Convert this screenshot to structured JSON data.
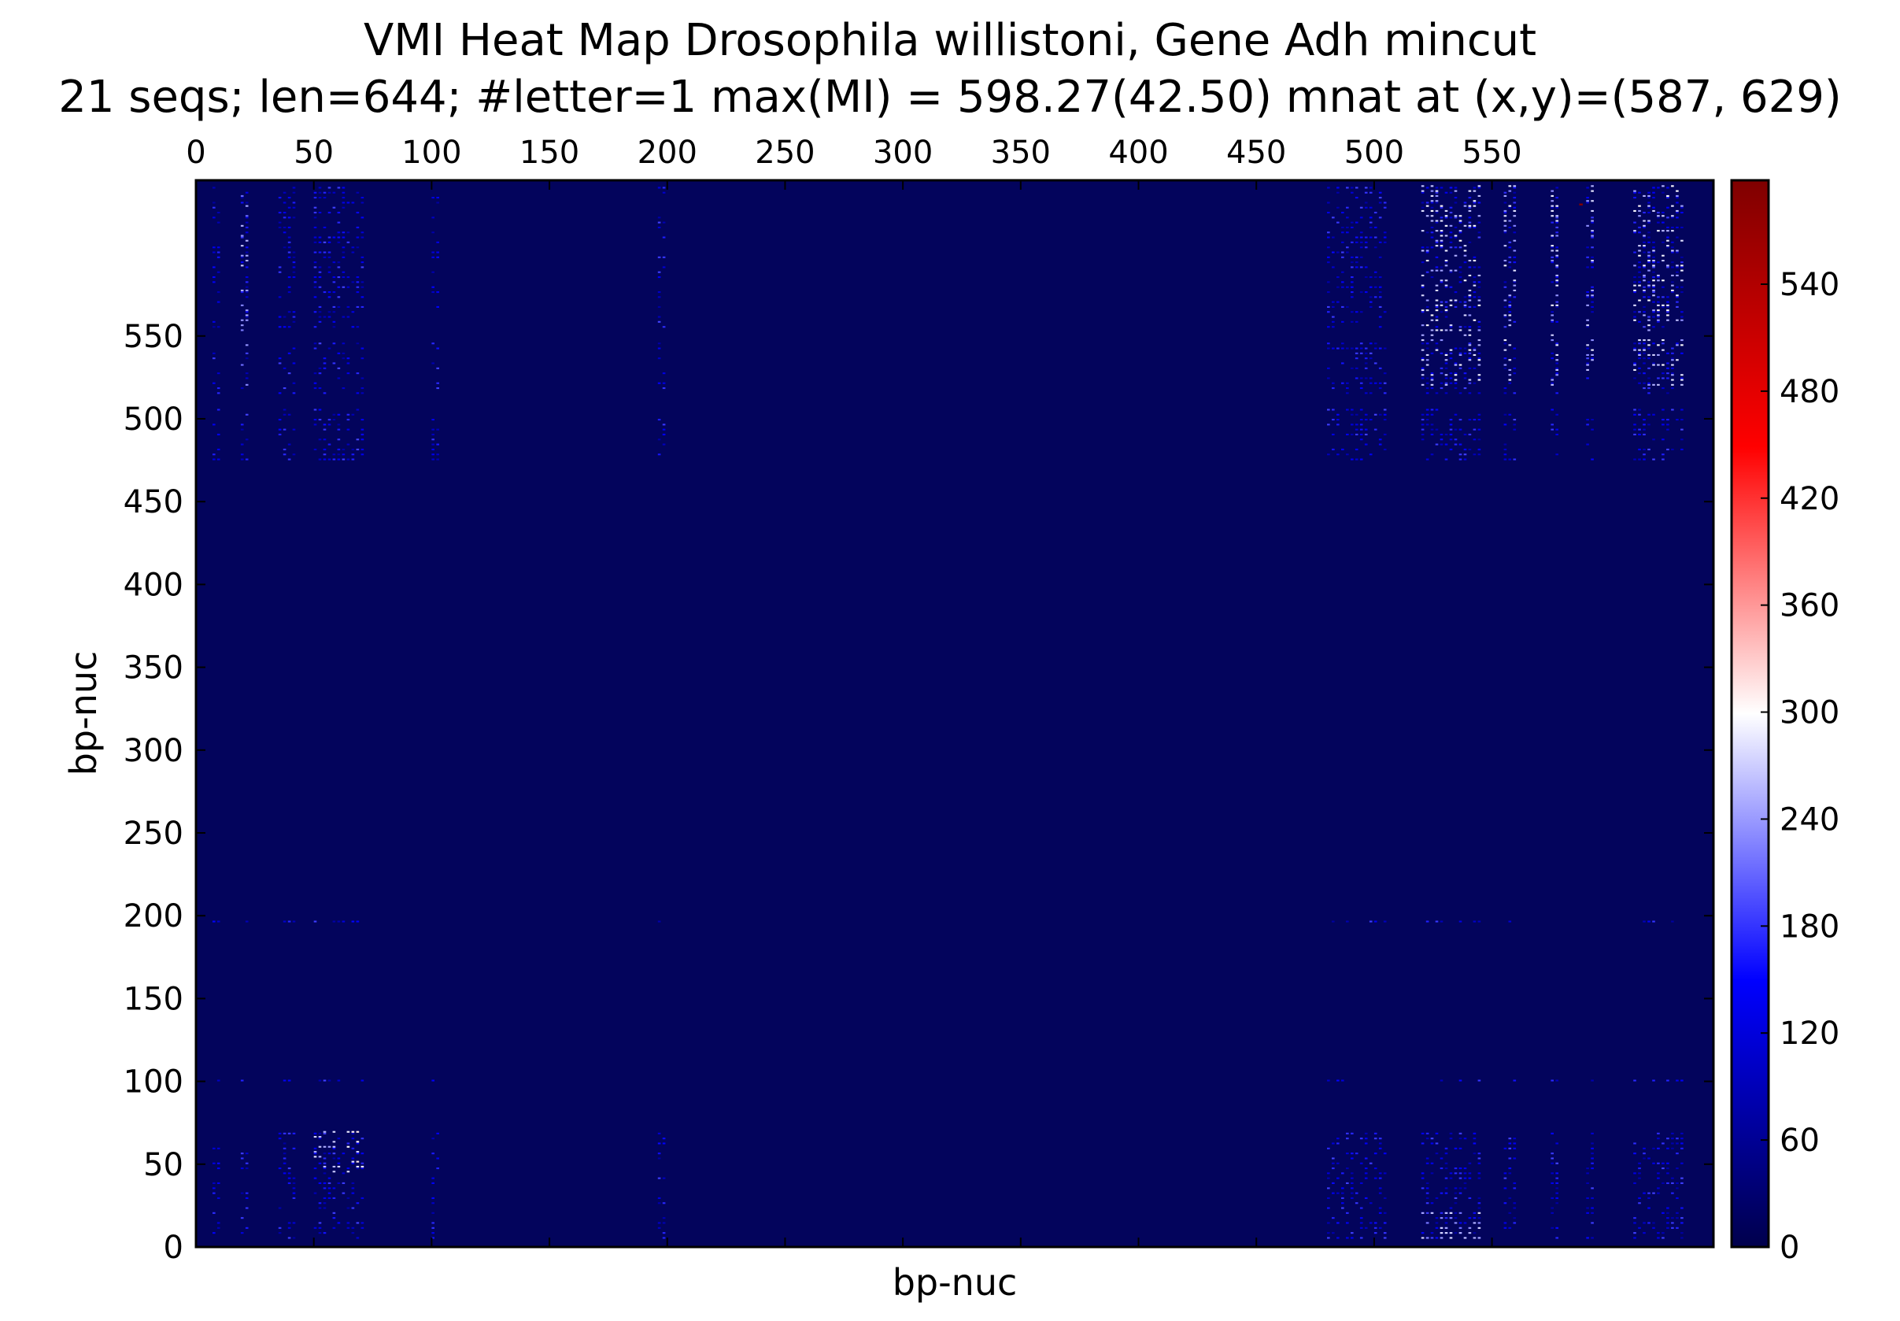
{
  "chart_data": {
    "type": "heatmap",
    "title": "VMI Heat Map Drosophila willistoni, Gene Adh mincut",
    "subtitle": "21 seqs; len=644; #letter=1 max(MI) = 598.27(42.50) mnat at (x,y)=(587, 629)",
    "xlabel": "bp-nuc",
    "ylabel": "bp-nuc",
    "x_axis_position": "top",
    "xlim": [
      0,
      644
    ],
    "ylim": [
      0,
      644
    ],
    "x_ticks": [
      0,
      50,
      100,
      150,
      200,
      250,
      300,
      350,
      400,
      450,
      500,
      550
    ],
    "y_ticks": [
      0,
      50,
      100,
      150,
      200,
      250,
      300,
      350,
      400,
      450,
      500,
      550
    ],
    "colorbar": {
      "min": 0,
      "max": 598.27,
      "ticks": [
        0,
        60,
        120,
        180,
        240,
        300,
        360,
        420,
        480,
        540
      ],
      "colormap": "seismic",
      "stops": [
        "#00004c",
        "#0000ff",
        "#ffffff",
        "#ff0000",
        "#7f0000"
      ]
    },
    "background_color": "#03045c",
    "x_clusters": [
      [
        7,
        10
      ],
      [
        19,
        22
      ],
      [
        35,
        42
      ],
      [
        50,
        70
      ],
      [
        100,
        102
      ],
      [
        196,
        198
      ],
      [
        480,
        505
      ],
      [
        520,
        545
      ],
      [
        555,
        560
      ],
      [
        575,
        578
      ],
      [
        590,
        593
      ],
      [
        610,
        630
      ]
    ],
    "y_clusters": [
      [
        5,
        70
      ],
      [
        100,
        102
      ],
      [
        196,
        198
      ],
      [
        475,
        505
      ],
      [
        515,
        545
      ],
      [
        555,
        640
      ]
    ],
    "hot_blocks": [
      {
        "x": [
          50,
          70
        ],
        "y": [
          45,
          70
        ],
        "value": 300
      },
      {
        "x": [
          520,
          545
        ],
        "y": [
          520,
          640
        ],
        "value": 290
      },
      {
        "x": [
          610,
          630
        ],
        "y": [
          520,
          640
        ],
        "value": 290
      },
      {
        "x": [
          555,
          560
        ],
        "y": [
          520,
          640
        ],
        "value": 280
      },
      {
        "x": [
          575,
          578
        ],
        "y": [
          520,
          640
        ],
        "value": 280
      },
      {
        "x": [
          590,
          593
        ],
        "y": [
          520,
          640
        ],
        "value": 280
      },
      {
        "x": [
          19,
          22
        ],
        "y": [
          520,
          640
        ],
        "value": 260
      },
      {
        "x": [
          520,
          545
        ],
        "y": [
          5,
          20
        ],
        "value": 270
      }
    ],
    "max_point": {
      "x": 587,
      "y": 629,
      "value": 598.27
    }
  }
}
